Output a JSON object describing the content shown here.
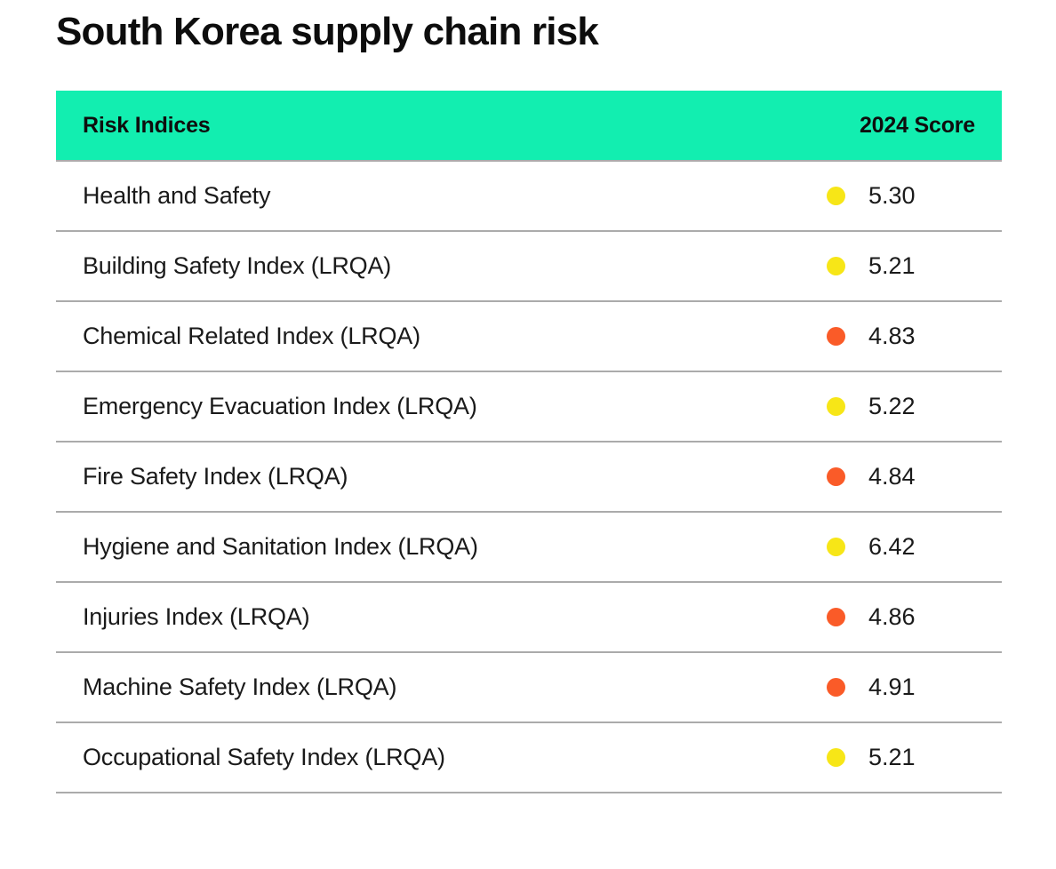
{
  "page_title": "South Korea supply chain risk",
  "table": {
    "columns": [
      "Risk Indices",
      "2024 Score"
    ],
    "rows": [
      {
        "label": "Health and Safety",
        "score": "5.30",
        "level": "yellow"
      },
      {
        "label": "Building Safety Index (LRQA)",
        "score": "5.21",
        "level": "yellow"
      },
      {
        "label": "Chemical Related Index (LRQA)",
        "score": "4.83",
        "level": "orange"
      },
      {
        "label": "Emergency Evacuation Index (LRQA)",
        "score": "5.22",
        "level": "yellow"
      },
      {
        "label": "Fire Safety Index (LRQA)",
        "score": "4.84",
        "level": "orange"
      },
      {
        "label": "Hygiene and Sanitation Index (LRQA)",
        "score": "6.42",
        "level": "yellow"
      },
      {
        "label": "Injuries Index (LRQA)",
        "score": "4.86",
        "level": "orange"
      },
      {
        "label": "Machine Safety Index (LRQA)",
        "score": "4.91",
        "level": "orange"
      },
      {
        "label": "Occupational Safety Index (LRQA)",
        "score": "5.21",
        "level": "yellow"
      }
    ]
  },
  "colors": {
    "header_bg": "#12eeb0",
    "dot_yellow": "#f7e617",
    "dot_orange": "#fa5b28",
    "divider": "#ababab",
    "text": "#1a1a1a"
  },
  "chart_data": {
    "type": "table",
    "title": "South Korea supply chain risk",
    "columns": [
      "Risk Indices",
      "2024 Score"
    ],
    "rows": [
      {
        "risk_index": "Health and Safety",
        "score_2024": 5.3,
        "marker_color": "yellow"
      },
      {
        "risk_index": "Building Safety Index (LRQA)",
        "score_2024": 5.21,
        "marker_color": "yellow"
      },
      {
        "risk_index": "Chemical Related Index (LRQA)",
        "score_2024": 4.83,
        "marker_color": "orange"
      },
      {
        "risk_index": "Emergency Evacuation Index (LRQA)",
        "score_2024": 5.22,
        "marker_color": "yellow"
      },
      {
        "risk_index": "Fire Safety Index (LRQA)",
        "score_2024": 4.84,
        "marker_color": "orange"
      },
      {
        "risk_index": "Hygiene and Sanitation Index (LRQA)",
        "score_2024": 6.42,
        "marker_color": "yellow"
      },
      {
        "risk_index": "Injuries Index (LRQA)",
        "score_2024": 4.86,
        "marker_color": "orange"
      },
      {
        "risk_index": "Machine Safety Index (LRQA)",
        "score_2024": 4.91,
        "marker_color": "orange"
      },
      {
        "risk_index": "Occupational Safety Index (LRQA)",
        "score_2024": 5.21,
        "marker_color": "yellow"
      }
    ]
  }
}
